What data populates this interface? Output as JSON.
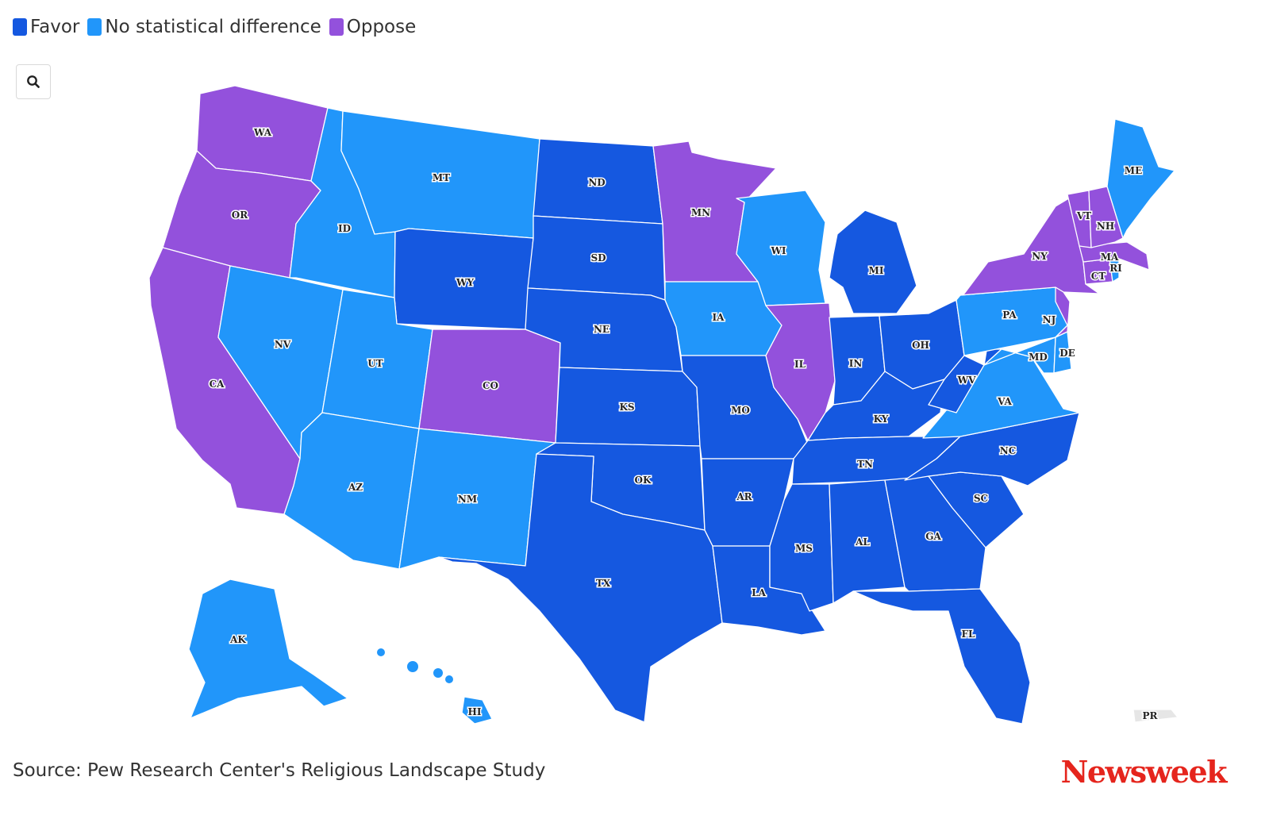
{
  "legend": [
    {
      "key": "favor",
      "label": "Favor",
      "color": "#1558e0"
    },
    {
      "key": "nodiff",
      "label": "No statistical difference",
      "color": "#2196fa"
    },
    {
      "key": "oppose",
      "label": "Oppose",
      "color": "#9351dc"
    }
  ],
  "colors": {
    "favor": "#1558e0",
    "nodiff": "#2196fa",
    "oppose": "#9351dc",
    "pr": "#e6e6e6"
  },
  "zoom_icon": "search-icon",
  "states": [
    {
      "code": "WA",
      "cat": "oppose"
    },
    {
      "code": "OR",
      "cat": "oppose"
    },
    {
      "code": "CA",
      "cat": "oppose"
    },
    {
      "code": "ID",
      "cat": "nodiff"
    },
    {
      "code": "NV",
      "cat": "nodiff"
    },
    {
      "code": "MT",
      "cat": "nodiff"
    },
    {
      "code": "WY",
      "cat": "favor"
    },
    {
      "code": "UT",
      "cat": "nodiff"
    },
    {
      "code": "AZ",
      "cat": "nodiff"
    },
    {
      "code": "CO",
      "cat": "oppose"
    },
    {
      "code": "NM",
      "cat": "nodiff"
    },
    {
      "code": "ND",
      "cat": "favor"
    },
    {
      "code": "SD",
      "cat": "favor"
    },
    {
      "code": "NE",
      "cat": "favor"
    },
    {
      "code": "KS",
      "cat": "favor"
    },
    {
      "code": "OK",
      "cat": "favor"
    },
    {
      "code": "TX",
      "cat": "favor"
    },
    {
      "code": "MN",
      "cat": "oppose"
    },
    {
      "code": "IA",
      "cat": "nodiff"
    },
    {
      "code": "MO",
      "cat": "favor"
    },
    {
      "code": "AR",
      "cat": "favor"
    },
    {
      "code": "LA",
      "cat": "favor"
    },
    {
      "code": "WI",
      "cat": "nodiff"
    },
    {
      "code": "IL",
      "cat": "oppose"
    },
    {
      "code": "MI",
      "cat": "favor"
    },
    {
      "code": "IN",
      "cat": "favor"
    },
    {
      "code": "OH",
      "cat": "favor"
    },
    {
      "code": "KY",
      "cat": "favor"
    },
    {
      "code": "TN",
      "cat": "favor"
    },
    {
      "code": "MS",
      "cat": "favor"
    },
    {
      "code": "AL",
      "cat": "favor"
    },
    {
      "code": "GA",
      "cat": "favor"
    },
    {
      "code": "FL",
      "cat": "favor"
    },
    {
      "code": "SC",
      "cat": "favor"
    },
    {
      "code": "NC",
      "cat": "favor"
    },
    {
      "code": "VA",
      "cat": "nodiff"
    },
    {
      "code": "WV",
      "cat": "favor"
    },
    {
      "code": "PA",
      "cat": "nodiff"
    },
    {
      "code": "NY",
      "cat": "oppose"
    },
    {
      "code": "MD",
      "cat": "nodiff"
    },
    {
      "code": "DE",
      "cat": "nodiff"
    },
    {
      "code": "NJ",
      "cat": "oppose"
    },
    {
      "code": "CT",
      "cat": "oppose"
    },
    {
      "code": "RI",
      "cat": "nodiff"
    },
    {
      "code": "MA",
      "cat": "oppose"
    },
    {
      "code": "VT",
      "cat": "oppose"
    },
    {
      "code": "NH",
      "cat": "oppose"
    },
    {
      "code": "ME",
      "cat": "nodiff"
    },
    {
      "code": "AK",
      "cat": "nodiff"
    },
    {
      "code": "HI",
      "cat": "nodiff"
    },
    {
      "code": "PR",
      "cat": "none"
    }
  ],
  "source": "Source: Pew Research Center's Religious Landscape Study",
  "brand": "Newsweek"
}
